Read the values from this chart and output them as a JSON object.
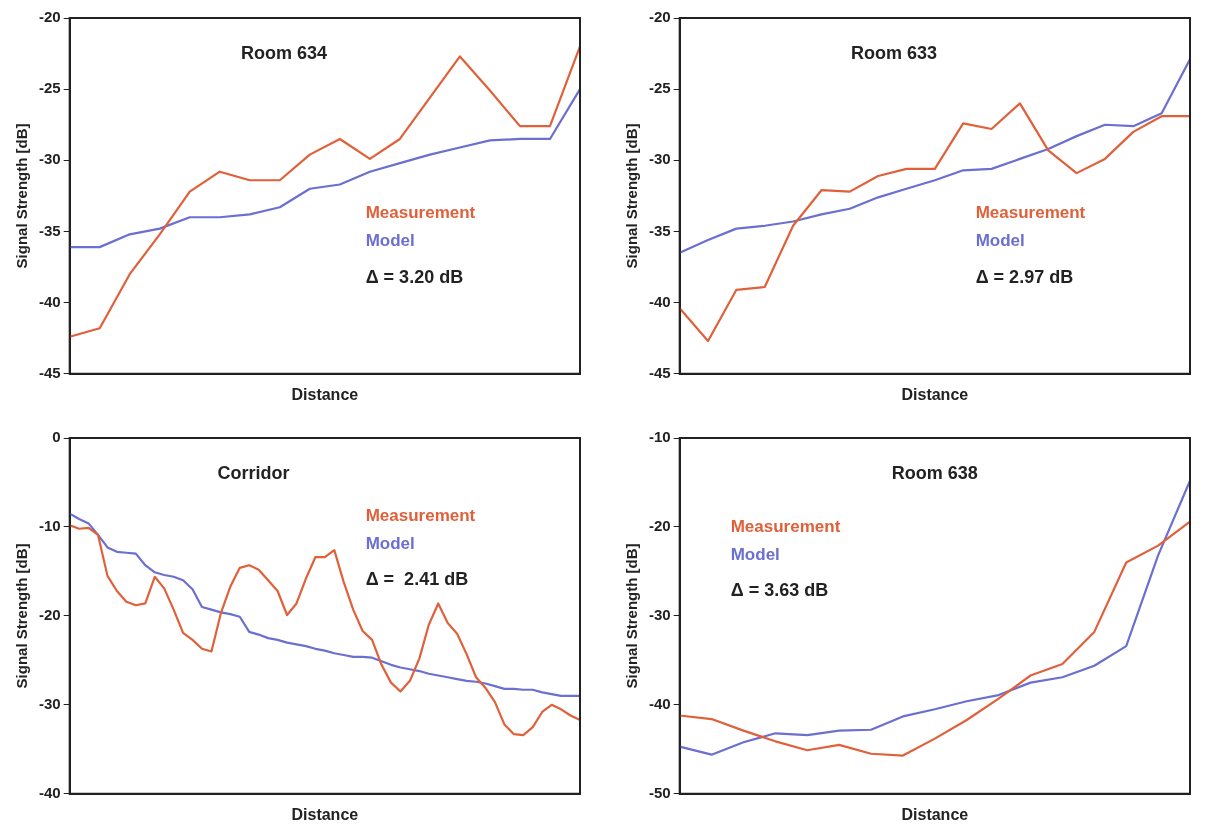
{
  "chart_data": [
    {
      "type": "line",
      "title": "Room 634",
      "xlabel": "Distance",
      "ylabel": "Signal Strength [dB]",
      "tick_labels": "y",
      "categories": [
        null,
        null,
        null,
        null,
        null,
        null,
        null,
        null,
        null,
        null,
        null,
        null,
        null,
        null,
        null,
        null,
        null,
        null
      ],
      "ylim": [
        -45,
        -20
      ],
      "yticks": [
        -45,
        -40,
        -35,
        -30,
        -25,
        -20
      ],
      "annotations": [
        "Δ = 3.20 dB"
      ],
      "series": [
        {
          "name": "Measurement",
          "color": "#e0603a",
          "values": [
            -42.4,
            -41.8,
            -38.0,
            -35.2,
            -32.2,
            -30.8,
            -31.4,
            -31.4,
            -29.6,
            -28.5,
            -29.9,
            -28.5,
            -25.6,
            -22.7,
            -25.1,
            -27.6,
            -27.6,
            -22.0
          ]
        },
        {
          "name": "Model",
          "color": "#6b6fd0",
          "values": [
            -36.1,
            -36.1,
            -35.2,
            -34.8,
            -34.0,
            -34.0,
            -33.8,
            -33.3,
            -32.0,
            -31.7,
            -30.8,
            -30.2,
            -29.6,
            -29.1,
            -28.6,
            -28.5,
            -28.5,
            -25.0
          ]
        }
      ]
    },
    {
      "type": "line",
      "title": "Room 633",
      "xlabel": "Distance",
      "ylabel": "Signal Strength [dB]",
      "tick_labels": "y",
      "categories": [
        null,
        null,
        null,
        null,
        null,
        null,
        null,
        null,
        null,
        null,
        null,
        null,
        null,
        null,
        null,
        null,
        null,
        null,
        null
      ],
      "ylim": [
        -45,
        -20
      ],
      "yticks": [
        -45,
        -40,
        -35,
        -30,
        -25,
        -20
      ],
      "annotations": [
        "Δ = 2.97 dB"
      ],
      "series": [
        {
          "name": "Measurement",
          "color": "#e0603a",
          "values": [
            -40.4,
            -42.7,
            -39.1,
            -38.9,
            -34.6,
            -32.1,
            -32.2,
            -31.1,
            -30.6,
            -30.6,
            -27.4,
            -27.8,
            -26.0,
            -29.3,
            -30.9,
            -29.9,
            -28.0,
            -26.9,
            -26.9
          ]
        },
        {
          "name": "Model",
          "color": "#6b6fd0",
          "values": [
            -36.5,
            -35.6,
            -34.8,
            -34.6,
            -34.3,
            -33.8,
            -33.4,
            -32.6,
            -32.0,
            -31.4,
            -30.7,
            -30.6,
            -29.9,
            -29.2,
            -28.3,
            -27.5,
            -27.6,
            -26.7,
            -22.9
          ]
        }
      ]
    },
    {
      "type": "line",
      "title": "Corridor",
      "xlabel": "Distance",
      "ylabel": "Signal Strength [dB]",
      "tick_labels": "y",
      "categories": [
        null,
        null,
        null,
        null,
        null,
        null,
        null,
        null,
        null,
        null,
        null,
        null,
        null,
        null,
        null,
        null,
        null,
        null,
        null,
        null,
        null,
        null,
        null,
        null,
        null,
        null,
        null,
        null,
        null,
        null,
        null,
        null,
        null,
        null,
        null,
        null,
        null,
        null,
        null,
        null,
        null,
        null,
        null,
        null,
        null,
        null,
        null,
        null,
        null,
        null,
        null,
        null,
        null,
        null,
        null
      ],
      "ylim": [
        -40,
        0
      ],
      "yticks": [
        -40,
        -30,
        -20,
        -10,
        0
      ],
      "annotations": [
        "Δ =  2.41 dB"
      ],
      "series": [
        {
          "name": "Measurement",
          "color": "#e0603a",
          "values": [
            -9.8,
            -10.2,
            -10.1,
            -10.9,
            -15.5,
            -17.2,
            -18.4,
            -18.8,
            -18.6,
            -15.6,
            -16.9,
            -19.3,
            -21.9,
            -22.7,
            -23.7,
            -24.0,
            -19.7,
            -16.7,
            -14.6,
            -14.3,
            -14.8,
            -16.0,
            -17.2,
            -19.9,
            -18.6,
            -15.8,
            -13.4,
            -13.4,
            -12.6,
            -16.2,
            -19.3,
            -21.7,
            -22.7,
            -25.5,
            -27.5,
            -28.5,
            -27.3,
            -24.8,
            -21.0,
            -18.6,
            -20.8,
            -22.0,
            -24.3,
            -26.9,
            -28.1,
            -29.7,
            -32.2,
            -33.3,
            -33.4,
            -32.5,
            -30.8,
            -30.0,
            -30.5,
            -31.2,
            -31.7
          ]
        },
        {
          "name": "Model",
          "color": "#6b6fd0",
          "values": [
            -8.5,
            -9.1,
            -9.6,
            -10.9,
            -12.3,
            -12.8,
            -12.9,
            -13.0,
            -14.3,
            -15.1,
            -15.4,
            -15.6,
            -16.0,
            -17.0,
            -19.0,
            -19.3,
            -19.6,
            -19.8,
            -20.1,
            -21.8,
            -22.1,
            -22.5,
            -22.7,
            -23.0,
            -23.2,
            -23.4,
            -23.7,
            -23.9,
            -24.2,
            -24.4,
            -24.6,
            -24.6,
            -24.7,
            -25.1,
            -25.5,
            -25.8,
            -26.0,
            -26.2,
            -26.5,
            -26.7,
            -26.9,
            -27.1,
            -27.3,
            -27.4,
            -27.6,
            -27.9,
            -28.2,
            -28.2,
            -28.3,
            -28.3,
            -28.6,
            -28.8,
            -29.0,
            -29.0,
            -29.0
          ]
        }
      ]
    },
    {
      "type": "line",
      "title": "Room 638",
      "xlabel": "Distance",
      "ylabel": "Signal Strength [dB]",
      "tick_labels": "y",
      "categories": [
        null,
        null,
        null,
        null,
        null,
        null,
        null,
        null,
        null,
        null,
        null,
        null,
        null,
        null,
        null,
        null,
        null
      ],
      "ylim": [
        -50,
        -10
      ],
      "yticks": [
        -50,
        -40,
        -30,
        -20,
        -10
      ],
      "annotations": [
        "Δ = 3.63 dB"
      ],
      "series": [
        {
          "name": "Measurement",
          "color": "#e0603a",
          "values": [
            -41.2,
            -41.6,
            -42.9,
            -44.1,
            -45.1,
            -44.5,
            -45.5,
            -45.7,
            -43.8,
            -41.7,
            -39.3,
            -36.7,
            -35.4,
            -31.8,
            -24.0,
            -22.1,
            -19.4
          ]
        },
        {
          "name": "Model",
          "color": "#6b6fd0",
          "values": [
            -44.7,
            -45.6,
            -44.2,
            -43.2,
            -43.4,
            -42.9,
            -42.8,
            -41.3,
            -40.5,
            -39.6,
            -38.9,
            -37.5,
            -36.9,
            -35.6,
            -33.4,
            -23.2,
            -14.8
          ]
        }
      ]
    }
  ]
}
